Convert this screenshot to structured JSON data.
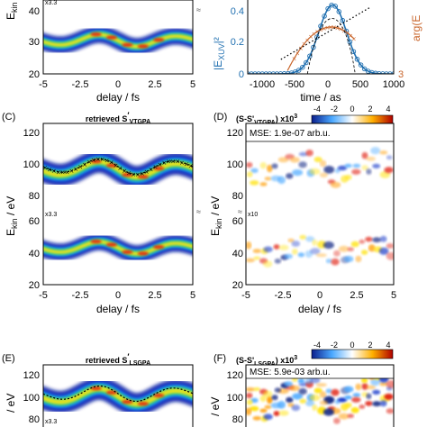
{
  "top_left": {
    "ylabel": "E",
    "ylabel_sub": "kin",
    "multiplier": "x3.3",
    "ticks_y": [
      "40",
      "30",
      "20"
    ],
    "ticks_x": [
      "-5",
      "-2.5",
      "0",
      "2.5",
      "5"
    ],
    "xlabel": "delay / fs"
  },
  "top_right": {
    "ylabel_left": "|E",
    "ylabel_left_sub": "XUV",
    "ylabel_left_tail": "|²",
    "ylabel_right": "arg(E",
    "ticks_y_left": [
      "0.4",
      "0.2",
      "0"
    ],
    "ticks_y_right": [
      "3"
    ],
    "ticks_x": [
      "-1000",
      "-500",
      "0",
      "500",
      "1000"
    ],
    "xlabel": "time / as"
  },
  "panel_c": {
    "letter": "(C)",
    "title_pre": "retrieved S",
    "title_sub": "VTGPA",
    "ylabel": "E",
    "ylabel_sub": "kin",
    "ylabel_unit": " / eV",
    "multiplier": "x3.3",
    "ticks_y": [
      "120",
      "100",
      "80",
      "60",
      "40",
      "20"
    ],
    "ticks_x": [
      "-5",
      "-2.5",
      "0",
      "2.5",
      "5"
    ],
    "xlabel": "delay / fs"
  },
  "panel_d": {
    "letter": "(D)",
    "title": "(S-S'",
    "title_sub": "VTGPA",
    "title_tail": ") x10",
    "title_exp": "3",
    "colorbar_ticks": [
      "-4",
      "-2",
      "0",
      "2",
      "4"
    ],
    "mse": "MSE: 1.9e-07 arb.u.",
    "multiplier": "x10",
    "ticks_x": [
      "-5",
      "-2.5",
      "0",
      "2.5",
      "5"
    ],
    "xlabel": "delay / fs"
  },
  "panel_e": {
    "letter": "(E)",
    "title_pre": "retrieved S",
    "title_sub": "LSGPA",
    "ylabel_unit": "/ eV",
    "multiplier": "x3.3",
    "ticks_y": [
      "120",
      "100",
      "80"
    ]
  },
  "panel_f": {
    "letter": "(F)",
    "title": "(S-S'",
    "title_sub": "LSGPA",
    "title_tail": ") x10",
    "title_exp": "3",
    "colorbar_ticks": [
      "-4",
      "-2",
      "0",
      "2",
      "4"
    ],
    "mse": "MSE: 5.9e-03 arb.u.",
    "ylabel_unit": "/ eV",
    "ticks_y": [
      "120",
      "100",
      "80"
    ]
  },
  "colors": {
    "axis": "#000000",
    "curve_blue": "#1f6fb0",
    "phase_orange": "#c8642a",
    "heat_dark": "#00008b",
    "heat_yellow": "#ffe600",
    "heat_red": "#d40000"
  }
}
